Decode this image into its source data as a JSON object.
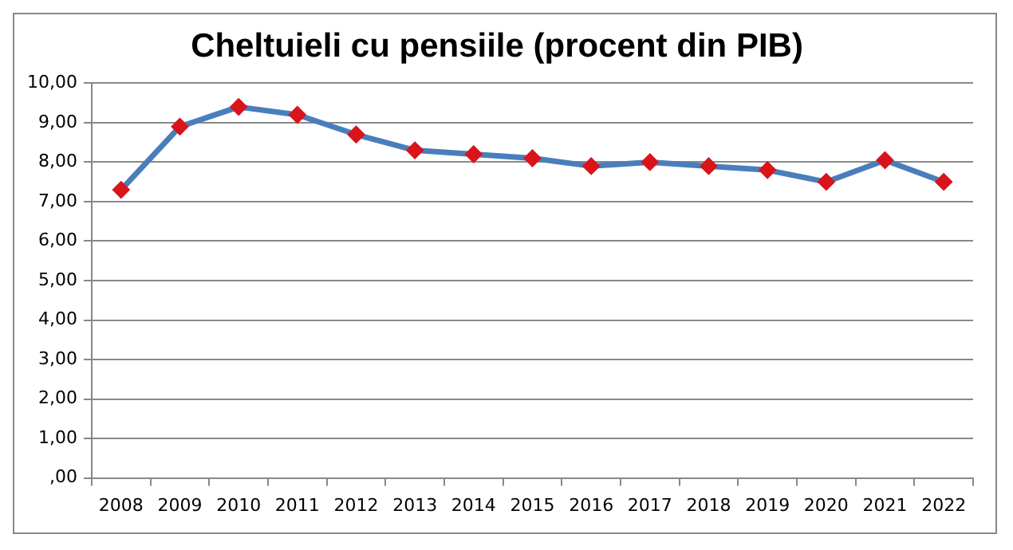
{
  "chart_data": {
    "type": "line",
    "title": "Cheltuieli cu pensiile (procent din PIB)",
    "categories": [
      "2008",
      "2009",
      "2010",
      "2011",
      "2012",
      "2013",
      "2014",
      "2015",
      "2016",
      "2017",
      "2018",
      "2019",
      "2020",
      "2021",
      "2022"
    ],
    "series": [
      {
        "color": "#4a7ebb",
        "values": [
          7.3,
          8.9,
          9.4,
          9.2,
          8.7,
          8.3,
          8.2,
          8.1,
          7.9,
          8.0,
          7.9,
          7.8,
          7.5,
          8.05,
          7.5
        ]
      }
    ],
    "ylim": [
      0,
      10
    ],
    "yticks": [
      {
        "value": 0,
        "label": ",00"
      },
      {
        "value": 1,
        "label": "1,00"
      },
      {
        "value": 2,
        "label": "2,00"
      },
      {
        "value": 3,
        "label": "3,00"
      },
      {
        "value": 4,
        "label": "4,00"
      },
      {
        "value": 5,
        "label": "5,00"
      },
      {
        "value": 6,
        "label": "6,00"
      },
      {
        "value": 7,
        "label": "7,00"
      },
      {
        "value": 8,
        "label": "8,00"
      },
      {
        "value": 9,
        "label": "9,00"
      },
      {
        "value": 10,
        "label": "10,00"
      }
    ],
    "grid": "y",
    "marker": "diamond",
    "line_style": "solid",
    "legend": false
  }
}
